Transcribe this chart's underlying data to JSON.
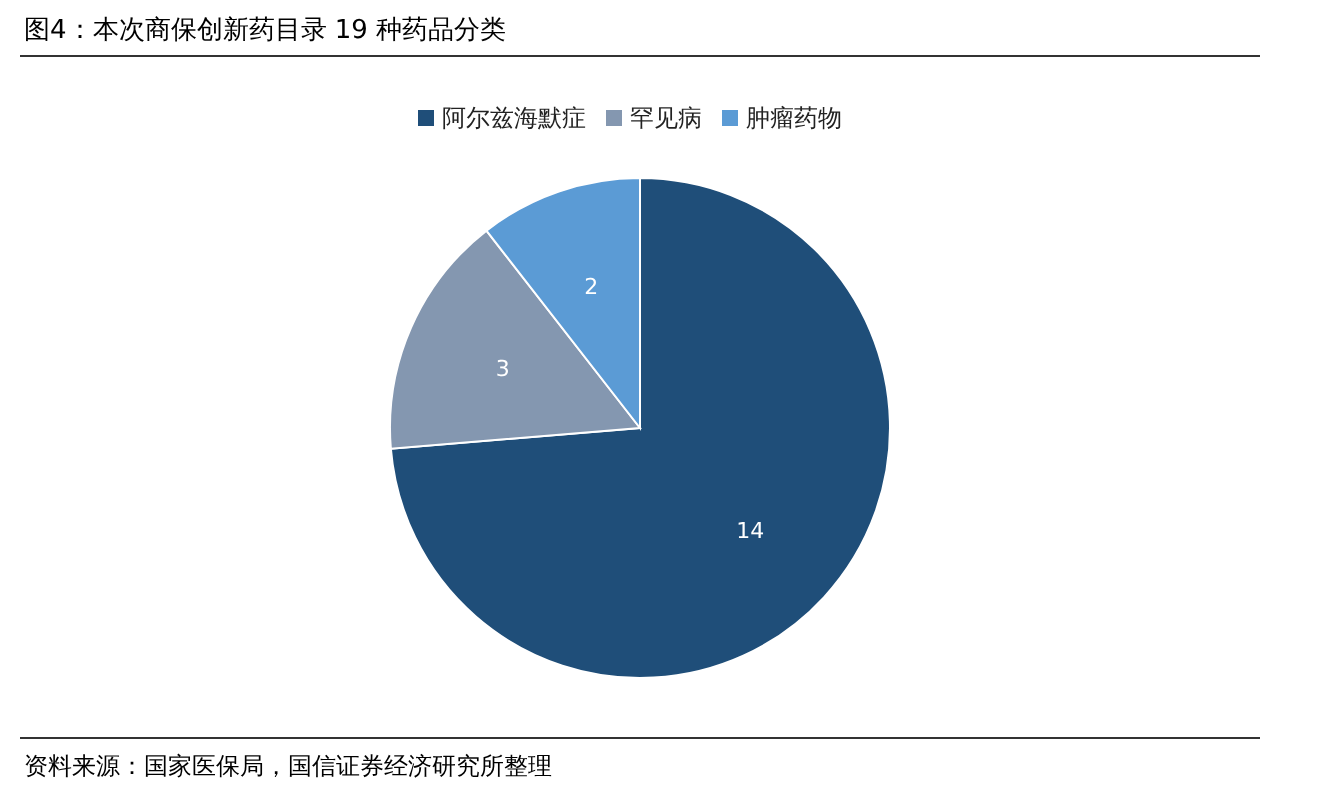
{
  "chart_data": {
    "type": "pie",
    "title": "图4：本次商保创新药目录 19 种药品分类",
    "categories": [
      "阿尔兹海默症",
      "罕见病",
      "肿瘤药物"
    ],
    "values": [
      14,
      3,
      2
    ],
    "colors": [
      "#1f4e79",
      "#8497b0",
      "#5b9bd5"
    ],
    "data_labels": true,
    "legend": "top",
    "annotations": [
      "资料来源：国家医保局，国信证券经济研究所整理"
    ]
  }
}
